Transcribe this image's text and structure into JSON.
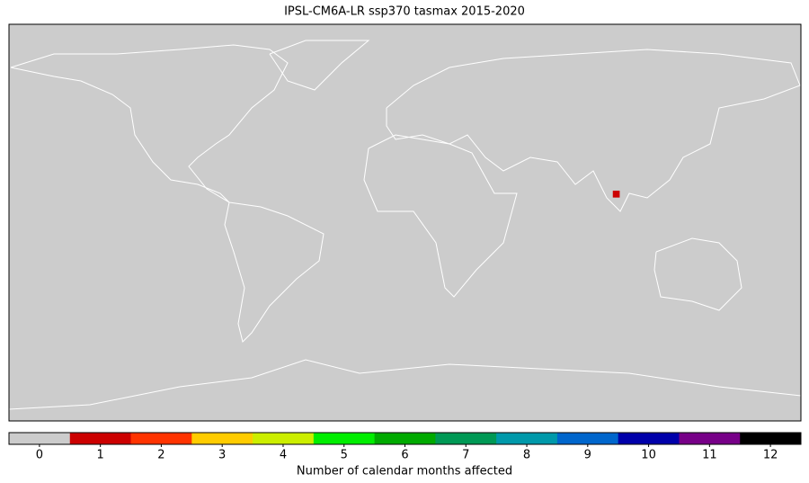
{
  "chart_data": {
    "type": "map",
    "title": "IPSL-CM6A-LR ssp370 tasmax 2015-2020",
    "xlim": [
      -180,
      180
    ],
    "ylim": [
      -90,
      90
    ],
    "background": "#cccccc",
    "cells": [
      {
        "lon": 95,
        "lat": 14,
        "value": 1
      },
      {
        "lon": 96,
        "lat": 14,
        "value": 1
      },
      {
        "lon": 97,
        "lat": 14,
        "value": 1
      },
      {
        "lon": 95,
        "lat": 13,
        "value": 1
      },
      {
        "lon": 96,
        "lat": 13,
        "value": 1
      },
      {
        "lon": 97,
        "lat": 13,
        "value": 1
      },
      {
        "lon": 95,
        "lat": 12,
        "value": 1
      },
      {
        "lon": 96,
        "lat": 12,
        "value": 1
      },
      {
        "lon": 97,
        "lat": 12,
        "value": 1
      }
    ],
    "colorbar": {
      "label": "Number of calendar months affected",
      "ticks": [
        0,
        1,
        2,
        3,
        4,
        5,
        6,
        7,
        8,
        9,
        10,
        11,
        12
      ],
      "colors": [
        "#cccccc",
        "#cc0000",
        "#ff3300",
        "#ffcc00",
        "#ccee00",
        "#00ee00",
        "#00aa00",
        "#009955",
        "#0099aa",
        "#0066cc",
        "#0000aa",
        "#770088",
        "#000000"
      ]
    }
  }
}
